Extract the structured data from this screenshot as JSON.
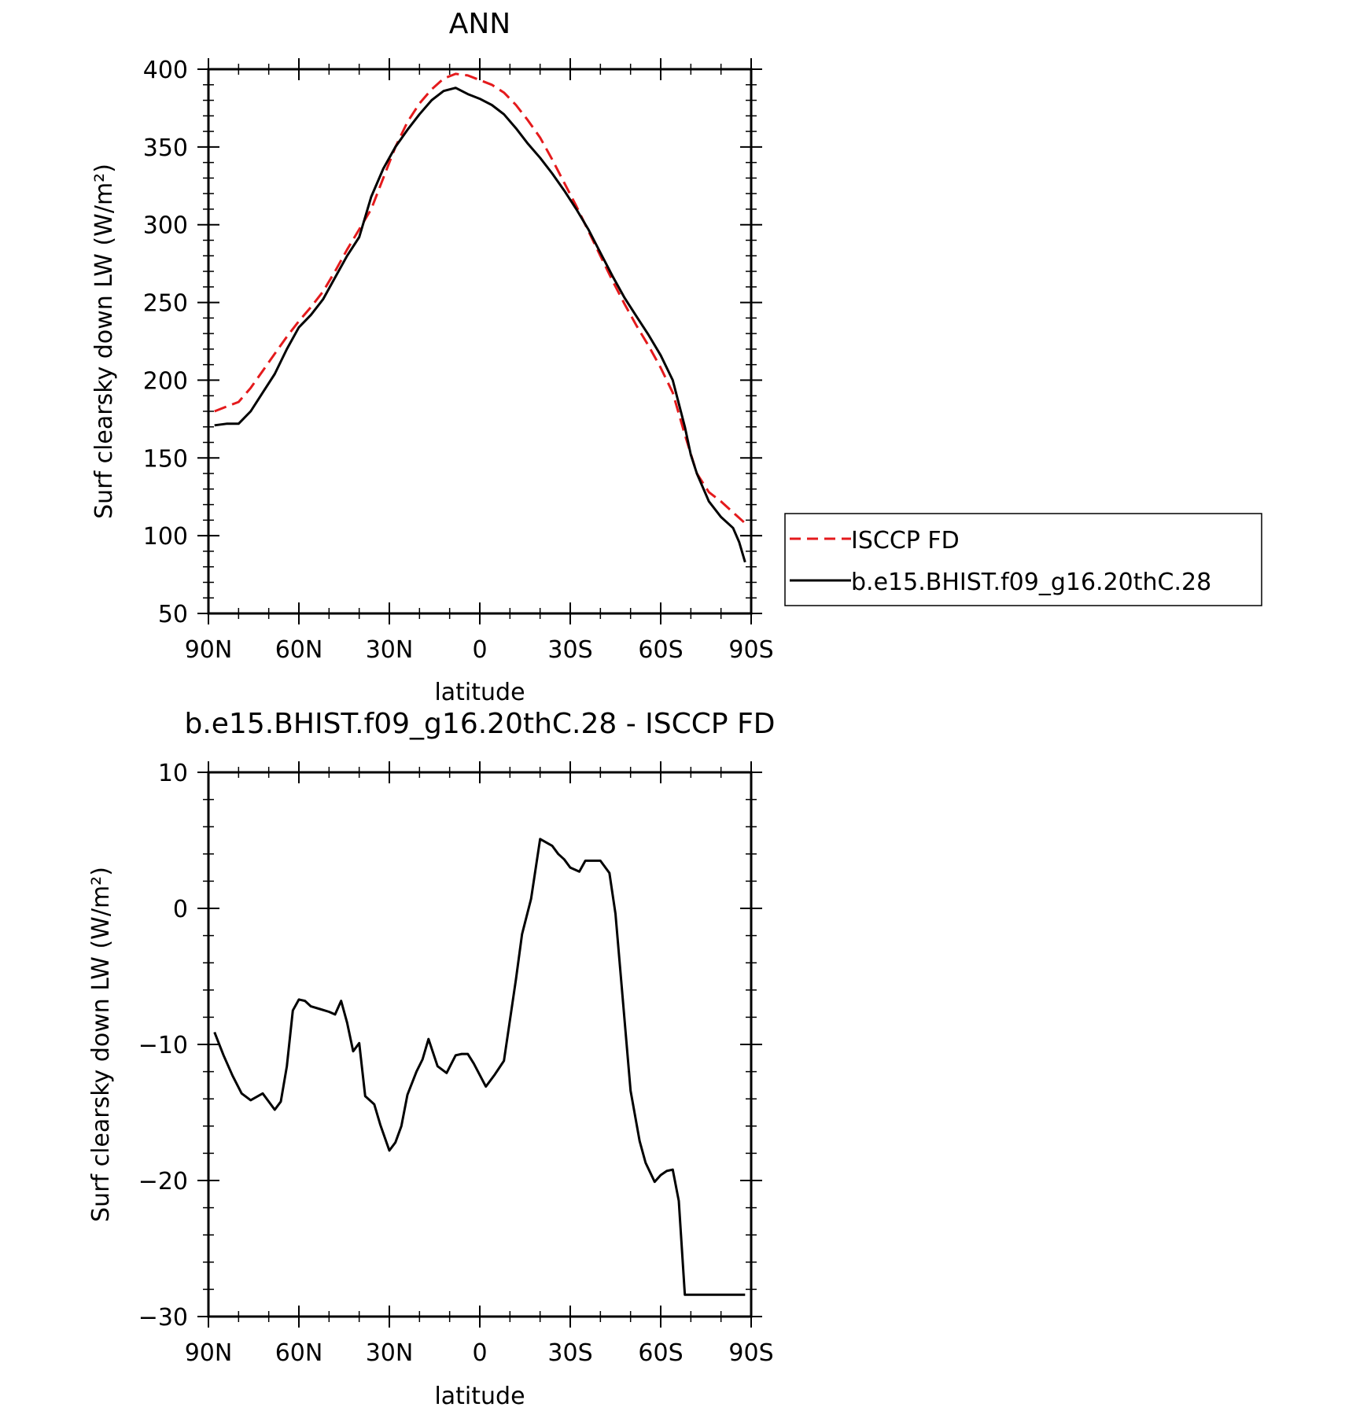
{
  "chart_data": [
    {
      "type": "line",
      "title": "ANN",
      "xlabel": "latitude",
      "ylabel": "Surf clearsky down LW (W/m²)",
      "xlim": [
        90,
        -90
      ],
      "ylim": [
        50,
        400
      ],
      "x_tick_values": [
        90,
        60,
        30,
        0,
        -30,
        -60,
        -90
      ],
      "x_tick_labels": [
        "90N",
        "60N",
        "30N",
        "0",
        "30S",
        "60S",
        "90S"
      ],
      "y_tick_values": [
        50,
        100,
        150,
        200,
        250,
        300,
        350,
        400
      ],
      "y_tick_labels": [
        "50",
        "100",
        "150",
        "200",
        "250",
        "300",
        "350",
        "400"
      ],
      "legend_position": "right",
      "series": [
        {
          "name": "ISCCP FD",
          "color": "#e41a1c",
          "dash": "dashed",
          "x": [
            88,
            84,
            80,
            76,
            72,
            68,
            64,
            60,
            56,
            52,
            48,
            44,
            40,
            36,
            32,
            28,
            24,
            20,
            16,
            12,
            8,
            4,
            0,
            -4,
            -8,
            -12,
            -16,
            -20,
            -24,
            -28,
            -32,
            -36,
            -40,
            -44,
            -48,
            -52,
            -56,
            -60,
            -64,
            -68,
            -72,
            -76,
            -80,
            -84,
            -88
          ],
          "values": [
            180,
            183,
            186,
            195,
            206,
            217,
            228,
            238,
            247,
            257,
            270,
            284,
            297,
            310,
            330,
            350,
            366,
            378,
            387,
            394,
            397,
            396,
            393,
            390,
            385,
            377,
            367,
            356,
            342,
            327,
            312,
            296,
            280,
            264,
            249,
            235,
            222,
            208,
            192,
            165,
            140,
            128,
            122,
            115,
            108
          ]
        },
        {
          "name": "b.e15.BHIST.f09_g16.20thC.28",
          "color": "#000000",
          "dash": "solid",
          "x": [
            88,
            84,
            80,
            76,
            72,
            68,
            64,
            60,
            56,
            52,
            48,
            44,
            40,
            36,
            32,
            28,
            24,
            20,
            16,
            12,
            8,
            4,
            0,
            -4,
            -8,
            -12,
            -16,
            -20,
            -24,
            -28,
            -32,
            -36,
            -40,
            -44,
            -48,
            -52,
            -56,
            -60,
            -64,
            -68,
            -70,
            -72,
            -76,
            -80,
            -84,
            -86,
            -88
          ],
          "values": [
            171,
            172,
            172,
            180,
            192,
            204,
            220,
            234,
            242,
            252,
            266,
            280,
            292,
            318,
            336,
            350,
            361,
            371,
            380,
            386,
            388,
            384,
            381,
            377,
            371,
            362,
            352,
            343,
            333,
            322,
            310,
            297,
            282,
            267,
            253,
            241,
            229,
            216,
            200,
            170,
            152,
            140,
            122,
            112,
            105,
            96,
            83
          ]
        }
      ]
    },
    {
      "type": "line",
      "title": "b.e15.BHIST.f09_g16.20thC.28 - ISCCP FD",
      "xlabel": "latitude",
      "ylabel": "Surf clearsky down LW (W/m²)",
      "xlim": [
        90,
        -90
      ],
      "ylim": [
        -30,
        10
      ],
      "x_tick_values": [
        90,
        60,
        30,
        0,
        -30,
        -60,
        -90
      ],
      "x_tick_labels": [
        "90N",
        "60N",
        "30N",
        "0",
        "30S",
        "60S",
        "90S"
      ],
      "y_tick_values": [
        -30,
        -20,
        -10,
        0,
        10
      ],
      "y_tick_labels": [
        "−30",
        "−20",
        "−10",
        "0",
        "10"
      ],
      "series": [
        {
          "color": "#000000",
          "dash": "solid",
          "x": [
            88,
            85,
            82,
            79,
            76,
            72,
            68,
            66,
            64,
            62,
            60,
            58,
            56,
            53,
            50,
            48,
            46,
            44,
            42,
            40,
            38,
            35,
            33,
            30,
            28,
            26,
            24,
            21,
            19,
            17,
            14,
            11,
            8,
            6,
            4,
            2,
            -2,
            -5,
            -8,
            -12,
            -14,
            -17,
            -20,
            -24,
            -26,
            -28,
            -30,
            -33,
            -35,
            -38,
            -40,
            -43,
            -45,
            -47,
            -50,
            -53,
            -55,
            -58,
            -60,
            -62,
            -64,
            -66,
            -68,
            -70,
            -73,
            -76,
            -79,
            -82,
            -84,
            -86,
            -88
          ],
          "values": [
            -9.1,
            -10.8,
            -12.3,
            -13.6,
            -14.1,
            -13.6,
            -14.8,
            -14.2,
            -11.6,
            -7.5,
            -6.7,
            -6.8,
            -7.2,
            -7.4,
            -7.6,
            -7.8,
            -6.8,
            -8.4,
            -10.5,
            -9.9,
            -13.8,
            -14.4,
            -15.9,
            -17.8,
            -17.2,
            -16.0,
            -13.7,
            -12.0,
            -11.1,
            -9.6,
            -11.6,
            -12.1,
            -10.8,
            -10.7,
            -10.7,
            -11.4,
            -13.1,
            -12.2,
            -11.2,
            -5.2,
            -1.9,
            0.7,
            5.1,
            4.6,
            4.0,
            3.6,
            3.0,
            2.7,
            3.5,
            3.5,
            3.5,
            2.6,
            -0.4,
            -5.6,
            -13.4,
            -17.1,
            -18.7,
            -20.1,
            -19.6,
            -19.3,
            -19.2,
            -21.5,
            -28.4,
            -28.4,
            -28.4,
            -28.4,
            -28.4,
            -28.4,
            -28.4,
            -28.4,
            -28.4
          ]
        }
      ]
    }
  ]
}
